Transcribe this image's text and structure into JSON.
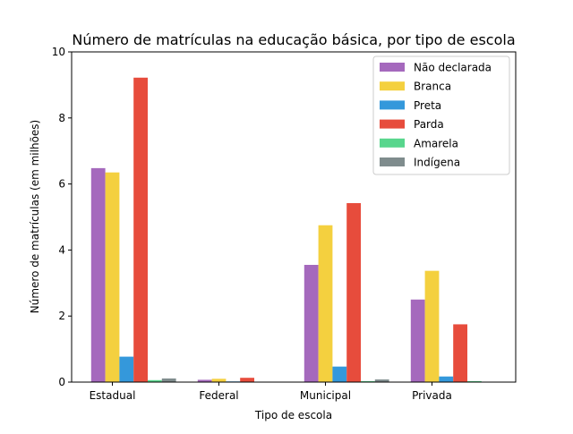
{
  "chart_data": {
    "type": "bar",
    "title": "Número de matrículas na educação básica, por tipo de escola",
    "xlabel": "Tipo de escola",
    "ylabel": "Número de matrículas (em milhões)",
    "categories": [
      "Estadual",
      "Federal",
      "Municipal",
      "Privada"
    ],
    "ylim": [
      0,
      10
    ],
    "yticks": [
      "0",
      "2",
      "4",
      "6",
      "8",
      "10"
    ],
    "legend_position": "top-right",
    "grid": false,
    "series": [
      {
        "name": "Não declarada",
        "color": "#a569bd",
        "values": [
          6.48,
          0.07,
          3.55,
          2.5
        ]
      },
      {
        "name": "Branca",
        "color": "#f4d03f",
        "values": [
          6.35,
          0.1,
          4.75,
          3.37
        ]
      },
      {
        "name": "Preta",
        "color": "#3498db",
        "values": [
          0.77,
          0.02,
          0.47,
          0.17
        ]
      },
      {
        "name": "Parda",
        "color": "#e74c3c",
        "values": [
          9.22,
          0.13,
          5.42,
          1.75
        ]
      },
      {
        "name": "Amarela",
        "color": "#58d68d",
        "values": [
          0.06,
          0.005,
          0.03,
          0.03
        ]
      },
      {
        "name": "Indígena",
        "color": "#7f8c8d",
        "values": [
          0.11,
          0.005,
          0.08,
          0.01
        ]
      }
    ]
  }
}
